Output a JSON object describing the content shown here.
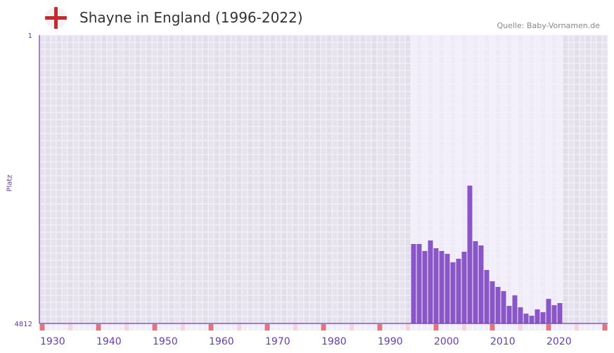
{
  "header": {
    "title": "Shayne in England (1996-2022)",
    "source": "Quelle: Baby-Vornamen.de",
    "flag_icon": "england-flag-icon"
  },
  "colors": {
    "bar": "#8a55c7",
    "axis": "#6a3cb0",
    "decade": "#e8727a",
    "half": "#f5d5dd"
  },
  "chart_data": {
    "type": "bar",
    "title": "Shayne in England (1996-2022)",
    "xlabel": "",
    "ylabel": "Platz",
    "xlim": [
      1930,
      2030
    ],
    "ylim": [
      4812,
      1
    ],
    "y_ticks": [
      "1",
      "4812"
    ],
    "x_ticks": [
      "1930",
      "1940",
      "1950",
      "1960",
      "1970",
      "1980",
      "1990",
      "2000",
      "2010",
      "2020"
    ],
    "categories": [
      1996,
      1997,
      1998,
      1999,
      2000,
      2001,
      2002,
      2003,
      2004,
      2005,
      2006,
      2007,
      2008,
      2009,
      2010,
      2011,
      2012,
      2013,
      2014,
      2015,
      2016,
      2017,
      2018,
      2019,
      2020,
      2021,
      2022
    ],
    "values": [
      3486,
      3486,
      3603,
      3427,
      3556,
      3603,
      3650,
      3791,
      3732,
      3615,
      2512,
      3439,
      3510,
      3920,
      4108,
      4202,
      4272,
      4519,
      4343,
      4542,
      4648,
      4683,
      4577,
      4624,
      4401,
      4507,
      4472
    ],
    "grid": true
  }
}
